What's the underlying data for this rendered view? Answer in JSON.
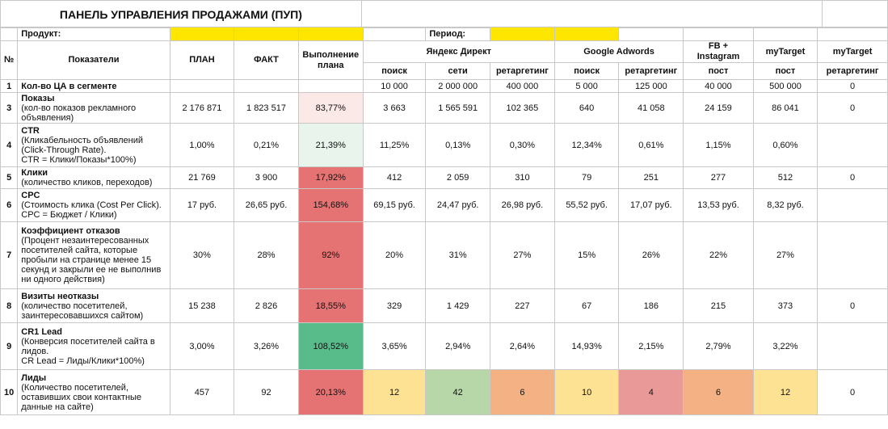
{
  "title": "ПАНЕЛЬ УПРАВЛЕНИЯ ПРОДАЖАМИ (ПУП)",
  "product_label": "Продукт:",
  "period_label": "Период:",
  "headers": {
    "num": "№",
    "indicators": "Показатели",
    "plan": "ПЛАН",
    "fact": "ФАКТ",
    "completion": "Выполнение плана",
    "yandex": "Яндекс Директ",
    "google": "Google Adwords",
    "fb": "FB + Instagram",
    "mytarget1": "myTarget",
    "mytarget2": "myTarget",
    "sub_search1": "поиск",
    "sub_networks": "сети",
    "sub_retarget1": "ретаргетинг",
    "sub_search2": "поиск",
    "sub_retarget2": "ретаргетинг",
    "sub_post1": "пост",
    "sub_post2": "пост",
    "sub_retarget3": "ретаргетинг"
  },
  "colors": {
    "yellow": "#ffe600",
    "light_red": "#fbe9e8",
    "light_green": "#e8f4ec",
    "red": "#e57373",
    "green": "#57bb8a",
    "pale_yellow": "#fde293",
    "pale_green": "#b7d7a8",
    "salmon": "#f4b183",
    "pink_red": "#ea9999"
  },
  "rows": [
    {
      "num": "1",
      "title": "Кол-во ЦА в сегменте",
      "sub": [],
      "plan": "",
      "fact": "",
      "completion": "",
      "completion_color": "",
      "channels": [
        "10 000",
        "2 000 000",
        "400 000",
        "5 000",
        "125 000",
        "40 000",
        "500 000",
        "0"
      ],
      "channel_colors": [
        "",
        "",
        "",
        "",
        "",
        "",
        "",
        ""
      ]
    },
    {
      "num": "3",
      "title": "Показы",
      "sub": [
        "(кол-во показов рекламного",
        "объявления)"
      ],
      "plan": "2 176 871",
      "fact": "1 823 517",
      "completion": "83,77%",
      "completion_color": "#fbe9e8",
      "channels": [
        "3 663",
        "1 565 591",
        "102 365",
        "640",
        "41 058",
        "24 159",
        "86 041",
        "0"
      ],
      "channel_colors": [
        "",
        "",
        "",
        "",
        "",
        "",
        "",
        ""
      ]
    },
    {
      "num": "4",
      "title": "CTR",
      "sub": [
        "(Кликабельность объявлений",
        "(Click-Through Rate).",
        "CTR = Клики/Показы*100%)"
      ],
      "plan": "1,00%",
      "fact": "0,21%",
      "completion": "21,39%",
      "completion_color": "#e8f4ec",
      "channels": [
        "11,25%",
        "0,13%",
        "0,30%",
        "12,34%",
        "0,61%",
        "1,15%",
        "0,60%",
        ""
      ],
      "channel_colors": [
        "",
        "",
        "",
        "",
        "",
        "",
        "",
        ""
      ]
    },
    {
      "num": "5",
      "title": "Клики",
      "sub": [
        "(количество кликов, переходов)"
      ],
      "plan": "21 769",
      "fact": "3 900",
      "completion": "17,92%",
      "completion_color": "#e57373",
      "channels": [
        "412",
        "2 059",
        "310",
        "79",
        "251",
        "277",
        "512",
        "0"
      ],
      "channel_colors": [
        "",
        "",
        "",
        "",
        "",
        "",
        "",
        ""
      ]
    },
    {
      "num": "6",
      "title": "CPC",
      "sub": [
        "(Стоимость клика (Cost Per Click).",
        "CPC = Бюджет / Клики)"
      ],
      "plan": "17 руб.",
      "fact": "26,65 руб.",
      "completion": "154,68%",
      "completion_color": "#e57373",
      "channels": [
        "69,15 руб.",
        "24,47 руб.",
        "26,98 руб.",
        "55,52 руб.",
        "17,07 руб.",
        "13,53 руб.",
        "8,32 руб.",
        ""
      ],
      "channel_colors": [
        "",
        "",
        "",
        "",
        "",
        "",
        "",
        ""
      ]
    },
    {
      "num": "7",
      "title": "Коэффициент отказов",
      "sub": [
        "(Процент незаинтересованных",
        "посетителей сайта, которые",
        "пробыли на странице менее 15",
        "секунд и закрыли ее не выполнив",
        "ни одного действия)"
      ],
      "plan": "30%",
      "fact": "28%",
      "completion": "92%",
      "completion_color": "#e57373",
      "channels": [
        "20%",
        "31%",
        "27%",
        "15%",
        "26%",
        "22%",
        "27%",
        ""
      ],
      "channel_colors": [
        "",
        "",
        "",
        "",
        "",
        "",
        "",
        ""
      ]
    },
    {
      "num": "8",
      "title": "Визиты неотказы",
      "sub": [
        "(количество посетителей,",
        "заинтересовавшихся сайтом)"
      ],
      "plan": "15 238",
      "fact": "2 826",
      "completion": "18,55%",
      "completion_color": "#e57373",
      "channels": [
        "329",
        "1 429",
        "227",
        "67",
        "186",
        "215",
        "373",
        "0"
      ],
      "channel_colors": [
        "",
        "",
        "",
        "",
        "",
        "",
        "",
        ""
      ]
    },
    {
      "num": "9",
      "title": "CR1 Lead",
      "sub": [
        "(Конверсия посетителей сайта в",
        "лидов.",
        "CR Lead = Лиды/Клики*100%)"
      ],
      "plan": "3,00%",
      "fact": "3,26%",
      "completion": "108,52%",
      "completion_color": "#57bb8a",
      "channels": [
        "3,65%",
        "2,94%",
        "2,64%",
        "14,93%",
        "2,15%",
        "2,79%",
        "3,22%",
        ""
      ],
      "channel_colors": [
        "",
        "",
        "",
        "",
        "",
        "",
        "",
        ""
      ]
    },
    {
      "num": "10",
      "title": "Лиды",
      "sub": [
        "(Количество посетителей,",
        "оставивших свои контактные",
        "данные на сайте)"
      ],
      "plan": "457",
      "fact": "92",
      "completion": "20,13%",
      "completion_color": "#e57373",
      "channels": [
        "12",
        "42",
        "6",
        "10",
        "4",
        "6",
        "12",
        "0"
      ],
      "channel_colors": [
        "#fde293",
        "#b7d7a8",
        "#f4b183",
        "#fde293",
        "#ea9999",
        "#f4b183",
        "#fde293",
        ""
      ]
    }
  ]
}
